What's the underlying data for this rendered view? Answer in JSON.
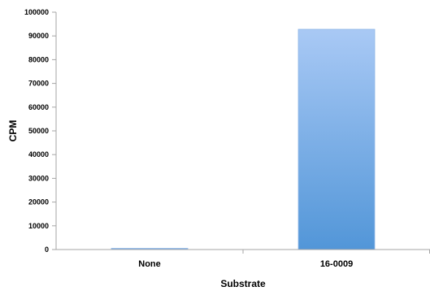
{
  "chart_data": {
    "type": "bar",
    "categories": [
      "None",
      "16-0009"
    ],
    "values": [
      400,
      92800
    ],
    "title": "",
    "xlabel": "Substrate",
    "ylabel": "CPM",
    "ylim": [
      0,
      100000
    ],
    "yticks": [
      "0",
      "10000",
      "20000",
      "30000",
      "40000",
      "50000",
      "60000",
      "70000",
      "80000",
      "90000",
      "100000"
    ],
    "grid": false,
    "legend": "none",
    "bar_color_top": "#a9c9f5",
    "bar_color_bottom": "#5296d8",
    "bar_edge_color": "#8fb6e6",
    "axis_color": "#a6a6a6"
  }
}
